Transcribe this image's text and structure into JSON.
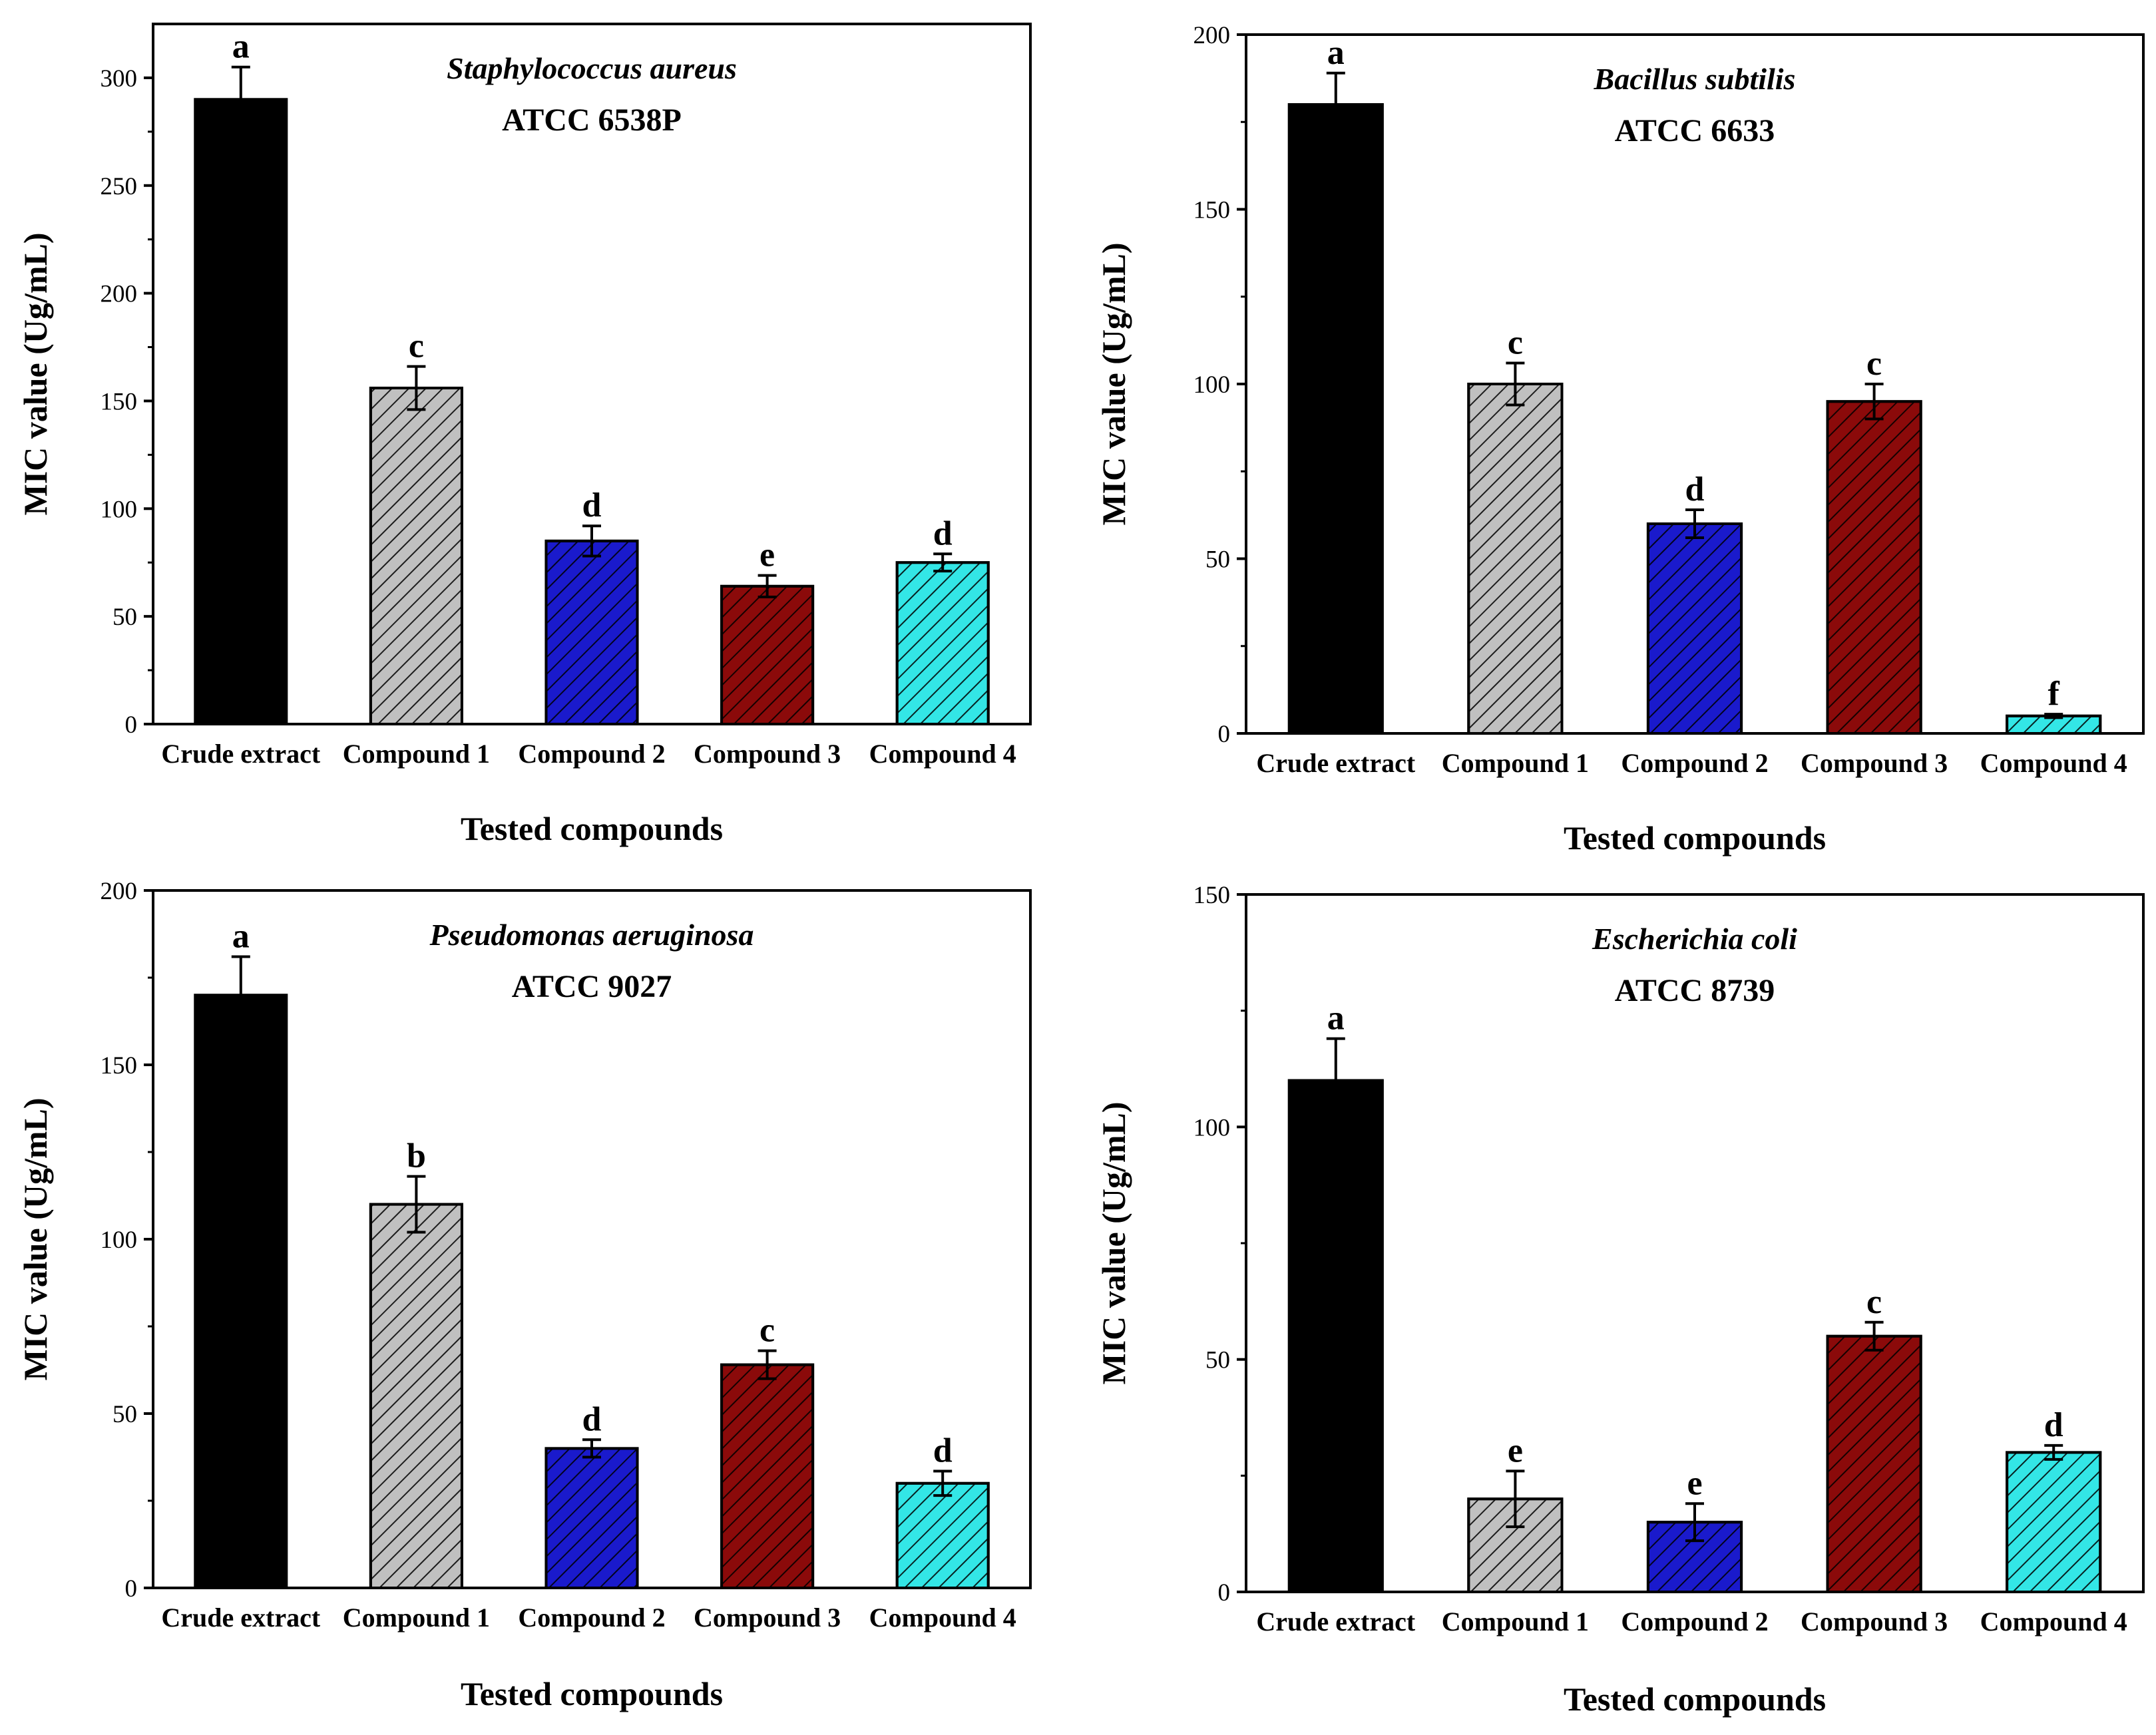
{
  "chart_data": [
    {
      "type": "bar",
      "title": "Staphylococcus aureus",
      "subtitle": "ATCC 6538P",
      "xlabel": "Tested compounds",
      "ylabel": "MIC value (Ug/mL)",
      "ylim": [
        0,
        325
      ],
      "yticks": [
        0,
        50,
        100,
        150,
        200,
        250,
        300
      ],
      "categories": [
        "Crude extract",
        "Compound 1",
        "Compound 2",
        "Compound 3",
        "Compound 4"
      ],
      "values": [
        290,
        156,
        85,
        64,
        75
      ],
      "errors": [
        15,
        10,
        7,
        5,
        4
      ],
      "letters": [
        "a",
        "c",
        "d",
        "e",
        "d"
      ]
    },
    {
      "type": "bar",
      "title": "Bacillus subtilis",
      "subtitle": "ATCC 6633",
      "xlabel": "Tested compounds",
      "ylabel": "MIC value (Ug/mL)",
      "ylim": [
        0,
        200
      ],
      "yticks": [
        0,
        50,
        100,
        150,
        200
      ],
      "categories": [
        "Crude extract",
        "Compound 1",
        "Compound 2",
        "Compound 3",
        "Compound 4"
      ],
      "values": [
        180,
        100,
        60,
        95,
        5
      ],
      "errors": [
        9,
        6,
        4,
        5,
        0.5
      ],
      "letters": [
        "a",
        "c",
        "d",
        "c",
        "f"
      ]
    },
    {
      "type": "bar",
      "title": "Pseudomonas aeruginosa",
      "subtitle": "ATCC 9027",
      "xlabel": "Tested compounds",
      "ylabel": "MIC value (Ug/mL)",
      "ylim": [
        0,
        200
      ],
      "yticks": [
        0,
        50,
        100,
        150,
        200
      ],
      "categories": [
        "Crude extract",
        "Compound 1",
        "Compound 2",
        "Compound 3",
        "Compound 4"
      ],
      "values": [
        170,
        110,
        40,
        64,
        30
      ],
      "errors": [
        11,
        8,
        2.5,
        4,
        3.5
      ],
      "letters": [
        "a",
        "b",
        "d",
        "c",
        "d"
      ]
    },
    {
      "type": "bar",
      "title": "Escherichia coli",
      "subtitle": "ATCC 8739",
      "xlabel": "Tested compounds",
      "ylabel": "MIC value (Ug/mL)",
      "ylim": [
        0,
        150
      ],
      "yticks": [
        0,
        50,
        100,
        150
      ],
      "categories": [
        "Crude extract",
        "Compound 1",
        "Compound 2",
        "Compound 3",
        "Compound 4"
      ],
      "values": [
        110,
        20,
        15,
        55,
        30
      ],
      "errors": [
        9,
        6,
        4,
        3,
        1.5
      ],
      "letters": [
        "a",
        "e",
        "e",
        "c",
        "d"
      ]
    }
  ],
  "colors": {
    "bars": [
      "#000000",
      "#c0c0c0",
      "#1a1acc",
      "#8b0a0a",
      "#33e6e6"
    ]
  }
}
